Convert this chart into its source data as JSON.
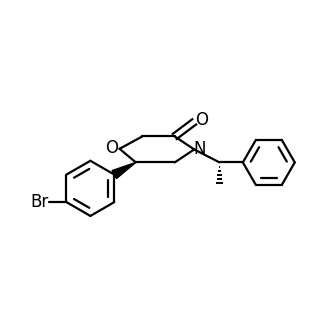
{
  "background_color": "#ffffff",
  "line_color": "#000000",
  "line_width": 1.6,
  "font_size": 12,
  "figsize": [
    3.3,
    3.3
  ],
  "dpi": 100,
  "xlim": [
    0.0,
    1.0
  ],
  "ylim": [
    0.28,
    0.98
  ]
}
